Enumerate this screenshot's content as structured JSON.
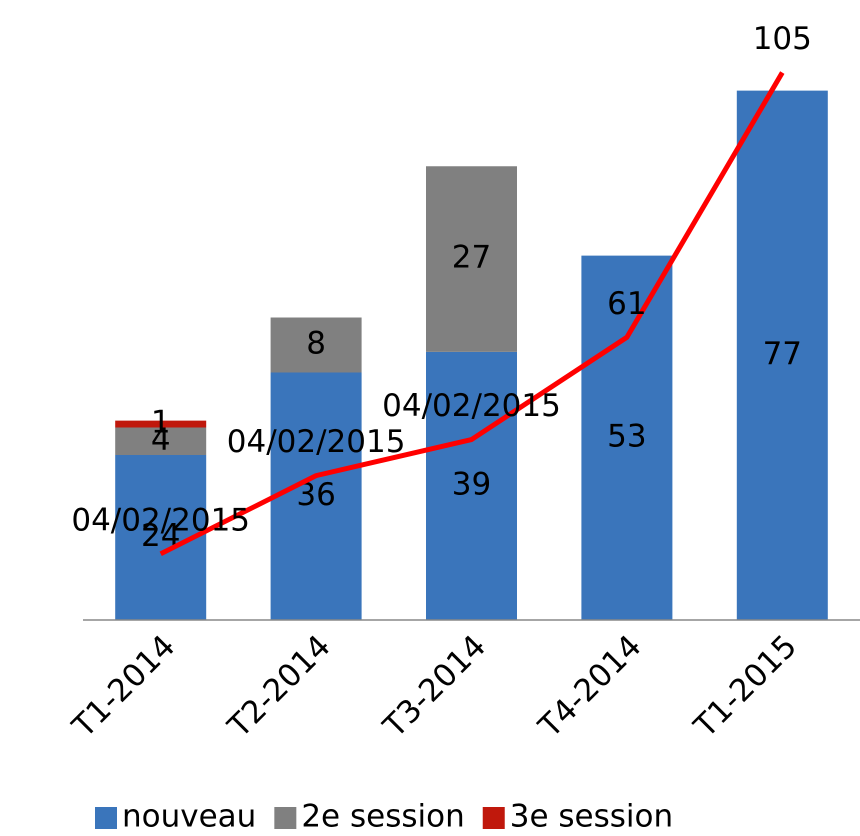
{
  "chart_data": {
    "type": "bar",
    "categories": [
      "T1-2014",
      "T2-2014",
      "T3-2014",
      "T4-2014",
      "T1-2015"
    ],
    "series": [
      {
        "name": "nouveau",
        "color": "#3a75bb",
        "values": [
          24,
          36,
          39,
          53,
          77
        ]
      },
      {
        "name": "2e session",
        "color": "#808080",
        "values": [
          4,
          8,
          27,
          null,
          null
        ]
      },
      {
        "name": "3e session",
        "color": "#c0180c",
        "values": [
          1,
          null,
          null,
          null,
          null
        ]
      }
    ],
    "line": {
      "type": "line",
      "color": "#ff0000",
      "axis": "y2",
      "values": [
        25,
        38,
        44,
        61,
        105
      ],
      "value_labels": [
        "04/02/2015",
        "04/02/2015",
        "04/02/2015",
        "61",
        "105"
      ]
    },
    "ylim": [
      0,
      84
    ],
    "y2lim": [
      14,
      110
    ],
    "legend": "bottom"
  }
}
